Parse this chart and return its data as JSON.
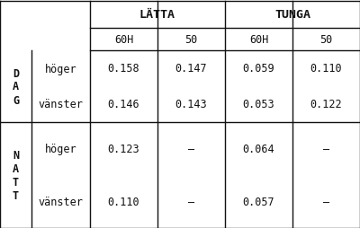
{
  "bg_color": "#ffffff",
  "border_color": "#111111",
  "latta_label": "LÄTTA",
  "tunga_label": "TUNGA",
  "sub_headers": [
    "60H",
    "50",
    "60H",
    "50"
  ],
  "dag_label": "D\nA\nG",
  "natt_label": "N\nA\nT\nT",
  "dag_rows": [
    {
      "label": "höger",
      "vals": [
        "0.158",
        "0.147",
        "0.059",
        "0.110"
      ]
    },
    {
      "label": "vänster",
      "vals": [
        "0.146",
        "0.143",
        "0.053",
        "0.122"
      ]
    }
  ],
  "natt_rows": [
    {
      "label": "höger",
      "vals": [
        "0.123",
        "–",
        "0.064",
        "–"
      ]
    },
    {
      "label": "vänster",
      "vals": [
        "0.110",
        "–",
        "0.057",
        "–"
      ]
    }
  ],
  "font_size": 8.5,
  "header_font_size": 9.5,
  "lw": 1.0
}
